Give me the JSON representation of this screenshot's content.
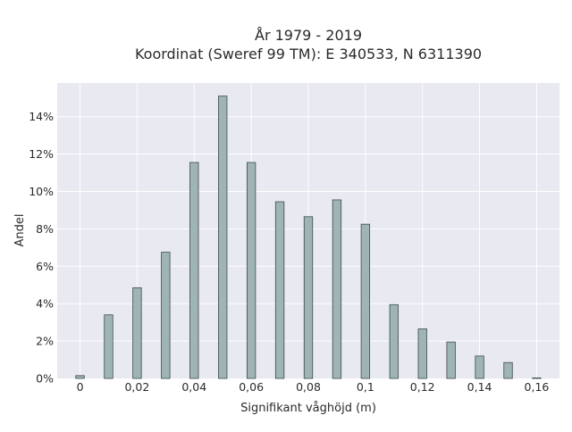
{
  "chart_data": {
    "type": "bar",
    "title_line1": "År 1979 - 2019",
    "title_line2": "Koordinat (Sweref 99 TM): E 340533, N 6311390",
    "xlabel": "Signifikant våghöjd (m)",
    "ylabel": "Andel",
    "x": [
      0,
      0.01,
      0.02,
      0.03,
      0.04,
      0.05,
      0.06,
      0.07,
      0.08,
      0.09,
      0.1,
      0.11,
      0.12,
      0.13,
      0.14,
      0.15,
      0.16
    ],
    "values": [
      0.15,
      3.4,
      4.85,
      6.75,
      11.55,
      15.1,
      11.55,
      9.45,
      8.65,
      9.55,
      8.25,
      3.95,
      2.65,
      1.95,
      1.2,
      0.85,
      0.03
    ],
    "xlim": [
      -0.008,
      0.168
    ],
    "ylim": [
      0,
      15.8
    ],
    "x_ticks": [
      0,
      0.02,
      0.04,
      0.06,
      0.08,
      0.1,
      0.12,
      0.14,
      0.16
    ],
    "x_tick_labels": [
      "0",
      "0,02",
      "0,04",
      "0,06",
      "0,08",
      "0,1",
      "0,12",
      "0,14",
      "0,16"
    ],
    "y_ticks": [
      0,
      2,
      4,
      6,
      8,
      10,
      12,
      14
    ],
    "y_tick_labels": [
      "0%",
      "2%",
      "4%",
      "6%",
      "8%",
      "10%",
      "12%",
      "14%"
    ],
    "grid": true,
    "colors": {
      "bar_fill": "#9fb4b4",
      "bar_stroke": "#3d4a4a",
      "plot_bg": "#e8e9f1",
      "grid": "#ffffff"
    }
  }
}
